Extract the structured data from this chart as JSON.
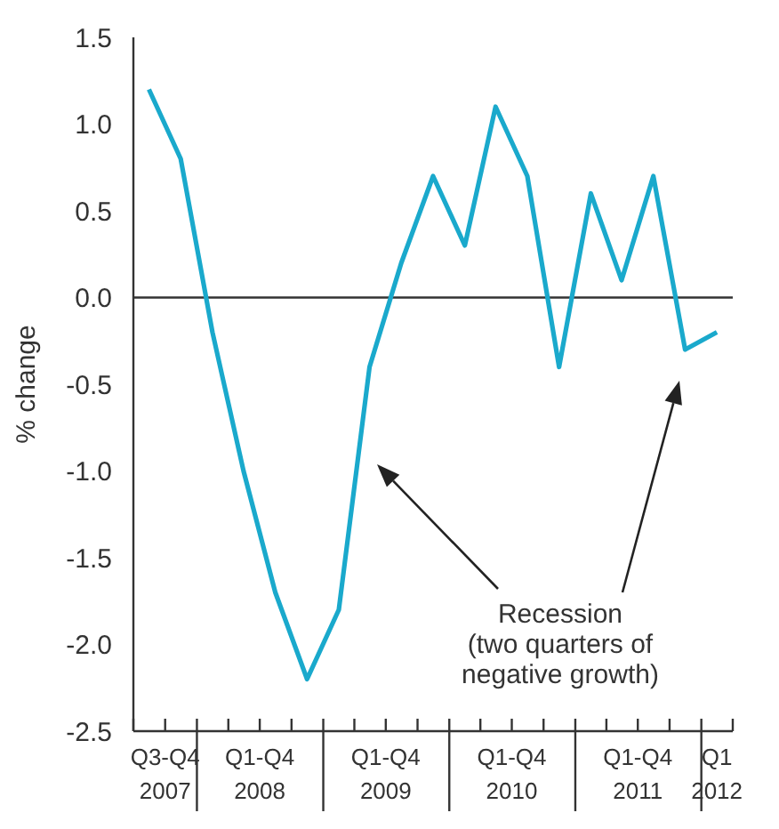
{
  "chart_data": {
    "type": "line",
    "ylabel": "% change",
    "x": [
      "2007-08-15",
      "2007-11-15",
      "2008-02-15",
      "2008-05-15",
      "2008-08-15",
      "2008-11-15",
      "2009-02-15",
      "2009-05-15",
      "2009-08-15",
      "2009-11-15",
      "2010-02-15",
      "2010-05-15",
      "2010-08-15",
      "2010-11-15",
      "2011-02-15",
      "2011-05-15",
      "2011-08-15",
      "2011-11-15",
      "2012-02-15"
    ],
    "series": [
      {
        "color": "#1aa9cc",
        "values": [
          1.2,
          0.8,
          -0.2,
          -1.0,
          -1.7,
          -2.2,
          -1.8,
          -0.4,
          0.2,
          0.7,
          0.3,
          1.1,
          0.7,
          -0.4,
          0.6,
          0.1,
          0.7,
          -0.3,
          -0.2
        ]
      }
    ],
    "xlim": [
      "2007-07-01",
      "2012-04-01"
    ],
    "xticks": [
      {
        "value": "2007-07-01",
        "label": null
      },
      {
        "value": "2007-10-01",
        "label": null
      },
      {
        "value": "2008-01-01",
        "label": null
      },
      {
        "value": "2008-04-01",
        "label": null
      },
      {
        "value": "2008-07-01",
        "label": null
      },
      {
        "value": "2008-10-01",
        "label": null
      },
      {
        "value": "2009-01-01",
        "label": null
      },
      {
        "value": "2009-04-01",
        "label": null
      },
      {
        "value": "2009-07-01",
        "label": null
      },
      {
        "value": "2009-10-01",
        "label": null
      },
      {
        "value": "2010-01-01",
        "label": null
      },
      {
        "value": "2010-04-01",
        "label": null
      },
      {
        "value": "2010-07-01",
        "label": null
      },
      {
        "value": "2010-10-01",
        "label": null
      },
      {
        "value": "2011-01-01",
        "label": null
      },
      {
        "value": "2011-04-01",
        "label": null
      },
      {
        "value": "2011-07-01",
        "label": null
      },
      {
        "value": "2011-10-01",
        "label": null
      },
      {
        "value": "2012-01-01",
        "label": null
      },
      {
        "value": "2012-04-01",
        "label": null
      },
      {
        "value": "2007-10-01",
        "label": "Q3-Q4 2007"
      },
      {
        "value": "2008-07-01",
        "label": "Q1-Q4 2008"
      },
      {
        "value": "2009-07-01",
        "label": "Q1-Q4 2009"
      },
      {
        "value": "2010-07-01",
        "label": "Q1-Q4 2010"
      },
      {
        "value": "2011-07-01",
        "label": "Q1-Q4 2011"
      },
      {
        "value": "2012-02-15",
        "label": "Q1 2012"
      }
    ],
    "ylim": [
      -2.5,
      1.5
    ],
    "yticks": [
      {
        "value": 1.5,
        "label": "1.5"
      },
      {
        "value": 1,
        "label": "1.0"
      },
      {
        "value": 0.5,
        "label": "0.5"
      },
      {
        "value": 0,
        "label": "0.0"
      },
      {
        "value": -0.5,
        "label": "-0.5"
      },
      {
        "value": -1,
        "label": "-1.0"
      },
      {
        "value": -1.5,
        "label": "-1.5"
      },
      {
        "value": -2,
        "label": "-2.0"
      },
      {
        "value": -2.5,
        "label": "-2.5"
      }
    ],
    "ref_lines": [
      {
        "axis": "y",
        "value": 0,
        "color": "#333333"
      }
    ],
    "annotations": [
      "Recession\n(two quarters of\nnegative growth)"
    ]
  }
}
